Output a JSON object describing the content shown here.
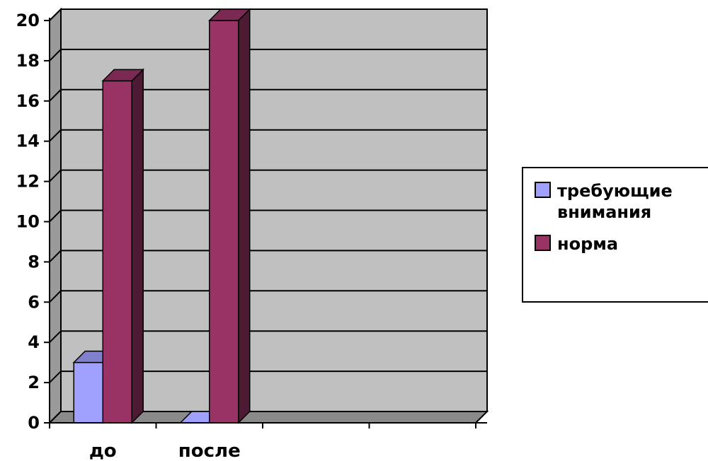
{
  "chart_data": {
    "type": "bar",
    "categories": [
      "до",
      "после",
      "",
      ""
    ],
    "series": [
      {
        "name": "требующие внимания",
        "values": [
          3,
          0,
          null,
          null
        ],
        "color": "#a0a0ff"
      },
      {
        "name": "норма",
        "values": [
          17,
          20,
          null,
          null
        ],
        "color": "#993366"
      }
    ],
    "ylim": [
      0,
      20
    ],
    "yticks": [
      0,
      2,
      4,
      6,
      8,
      10,
      12,
      14,
      16,
      18,
      20
    ],
    "grid": true,
    "legend_position": "right",
    "plot_background": "#c0c0c0",
    "legend_lines": [
      [
        "требующие",
        "внимания"
      ],
      [
        "норма"
      ]
    ]
  }
}
